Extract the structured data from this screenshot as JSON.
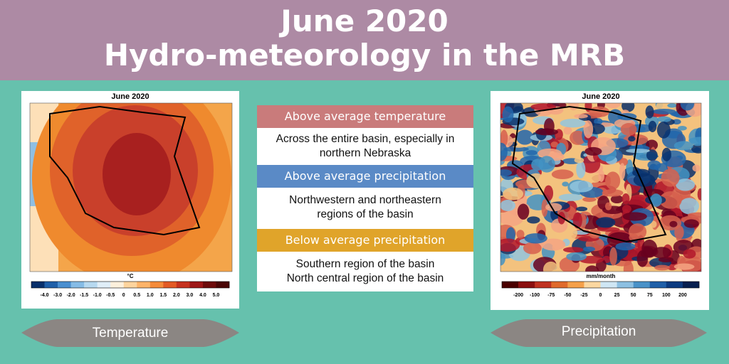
{
  "header": {
    "title_line1": "June 2020",
    "title_line2": "Hydro-meteorology in the MRB"
  },
  "temperature_map": {
    "title": "June 2020",
    "unit": "°C",
    "scale_labels": [
      "-4.0",
      "-3.0",
      "-2.0",
      "-1.5",
      "-1.0",
      "-0.5",
      "0",
      "0.5",
      "1.0",
      "1.5",
      "2.0",
      "3.0",
      "4.0",
      "5.0"
    ],
    "caption": "Temperature"
  },
  "summary": [
    {
      "heading": "Above average temperature",
      "text_lines": [
        "Across the entire basin, especially in",
        "northern Nebraska"
      ]
    },
    {
      "heading": "Above average precipitation",
      "text_lines": [
        "Northwestern and northeastern",
        "regions of the basin"
      ]
    },
    {
      "heading": "Below average precipitation",
      "text_lines": [
        "Southern region of the basin",
        "North central region of the basin"
      ]
    }
  ],
  "precipitation_map": {
    "title": "June 2020",
    "unit": "mm/month",
    "scale_labels": [
      "-200",
      "-100",
      "-75",
      "-50",
      "-25",
      "0",
      "25",
      "50",
      "75",
      "100",
      "200"
    ],
    "caption": "Precipitation"
  }
}
